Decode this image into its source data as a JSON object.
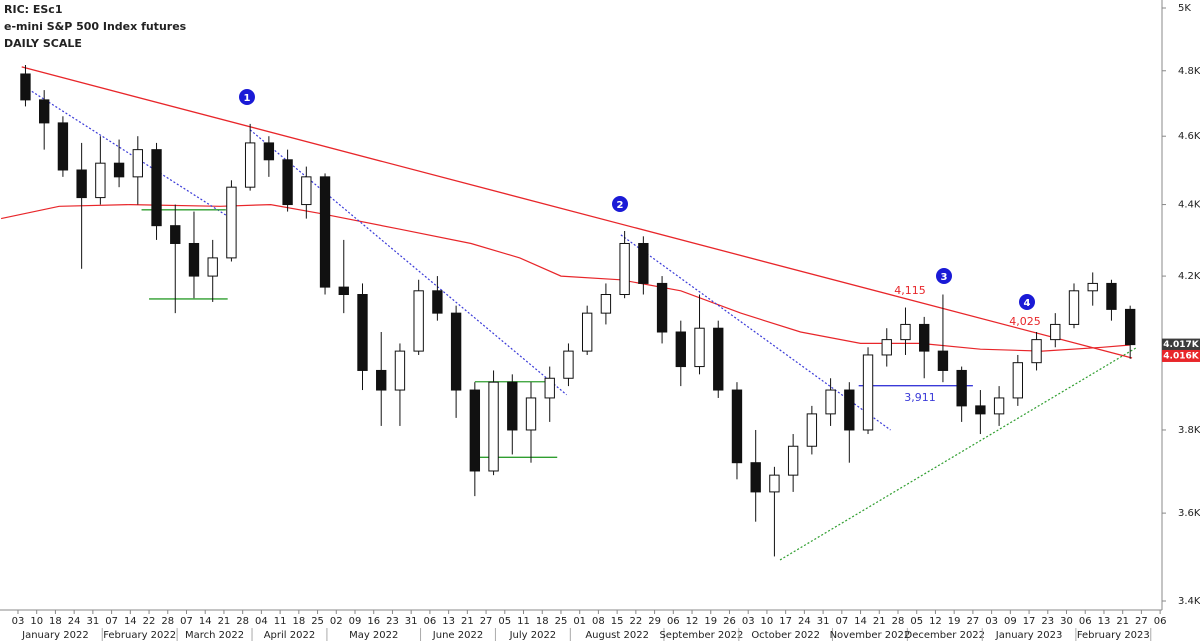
{
  "chart_data": {
    "type": "candlestick",
    "title": "RIC: ESc1",
    "subtitle": "e-mini S&P 500 Index futures",
    "scale_note": "DAILY SCALE",
    "log_scale": true,
    "xlim": [
      -0.96,
      61.1
    ],
    "ylim": [
      3400,
      5000
    ],
    "yticks": [
      {
        "value": 3400,
        "label": "3.4K"
      },
      {
        "value": 3600,
        "label": "3.6K"
      },
      {
        "value": 3800,
        "label": "3.8K"
      },
      {
        "value": 4200,
        "label": "4.2K"
      },
      {
        "value": 4400,
        "label": "4.4K"
      },
      {
        "value": 4600,
        "label": "4.6K"
      },
      {
        "value": 4800,
        "label": "4.8K"
      },
      {
        "value": 5000,
        "label": "5K"
      }
    ],
    "xticks": [
      {
        "value": 0,
        "label": "03"
      },
      {
        "value": 1,
        "label": "10"
      },
      {
        "value": 2,
        "label": "18"
      },
      {
        "value": 3,
        "label": "24"
      },
      {
        "value": 4,
        "label": "31"
      },
      {
        "value": 5,
        "label": "07"
      },
      {
        "value": 6,
        "label": "14"
      },
      {
        "value": 7,
        "label": "22"
      },
      {
        "value": 8,
        "label": "28"
      },
      {
        "value": 9,
        "label": "07"
      },
      {
        "value": 10,
        "label": "14"
      },
      {
        "value": 11,
        "label": "21"
      },
      {
        "value": 12,
        "label": "28"
      },
      {
        "value": 13,
        "label": "04"
      },
      {
        "value": 14,
        "label": "11"
      },
      {
        "value": 15,
        "label": "18"
      },
      {
        "value": 16,
        "label": "25"
      },
      {
        "value": 17,
        "label": "02"
      },
      {
        "value": 18,
        "label": "09"
      },
      {
        "value": 19,
        "label": "16"
      },
      {
        "value": 20,
        "label": "23"
      },
      {
        "value": 21,
        "label": "31"
      },
      {
        "value": 22,
        "label": "06"
      },
      {
        "value": 23,
        "label": "13"
      },
      {
        "value": 24,
        "label": "21"
      },
      {
        "value": 25,
        "label": "27"
      },
      {
        "value": 26,
        "label": "05"
      },
      {
        "value": 27,
        "label": "11"
      },
      {
        "value": 28,
        "label": "18"
      },
      {
        "value": 29,
        "label": "25"
      },
      {
        "value": 30,
        "label": "01"
      },
      {
        "value": 31,
        "label": "08"
      },
      {
        "value": 32,
        "label": "15"
      },
      {
        "value": 33,
        "label": "22"
      },
      {
        "value": 34,
        "label": "29"
      },
      {
        "value": 35,
        "label": "06"
      },
      {
        "value": 36,
        "label": "12"
      },
      {
        "value": 37,
        "label": "19"
      },
      {
        "value": 38,
        "label": "26"
      },
      {
        "value": 39,
        "label": "03"
      },
      {
        "value": 40,
        "label": "10"
      },
      {
        "value": 41,
        "label": "17"
      },
      {
        "value": 42,
        "label": "24"
      },
      {
        "value": 43,
        "label": "31"
      },
      {
        "value": 44,
        "label": "07"
      },
      {
        "value": 45,
        "label": "14"
      },
      {
        "value": 46,
        "label": "21"
      },
      {
        "value": 47,
        "label": "28"
      },
      {
        "value": 48,
        "label": "05"
      },
      {
        "value": 49,
        "label": "12"
      },
      {
        "value": 50,
        "label": "19"
      },
      {
        "value": 51,
        "label": "27"
      },
      {
        "value": 52,
        "label": "03"
      },
      {
        "value": 53,
        "label": "09"
      },
      {
        "value": 54,
        "label": "17"
      },
      {
        "value": 55,
        "label": "23"
      },
      {
        "value": 56,
        "label": "30"
      },
      {
        "value": 57,
        "label": "06"
      },
      {
        "value": 58,
        "label": "13"
      },
      {
        "value": 59,
        "label": "21"
      },
      {
        "value": 60,
        "label": "27"
      },
      {
        "value": 61,
        "label": "06"
      }
    ],
    "months": [
      "January 2022",
      "February 2022",
      "March 2022",
      "April 2022",
      "May 2022",
      "June 2022",
      "July 2022",
      "August 2022",
      "September 2022",
      "October 2022",
      "November 2022",
      "December 2022",
      "January 2023",
      "February 2023"
    ],
    "x": [
      0.4,
      1.4,
      2.4,
      3.4,
      4.4,
      5.4,
      6.4,
      7.4,
      8.4,
      9.4,
      10.4,
      11.4,
      12.4,
      13.4,
      14.4,
      15.4,
      16.4,
      17.4,
      18.4,
      19.4,
      20.4,
      21.4,
      22.4,
      23.4,
      24.4,
      25.4,
      26.4,
      27.4,
      28.4,
      29.4,
      30.4,
      31.4,
      32.4,
      33.4,
      34.4,
      35.4,
      36.4,
      37.4,
      38.4,
      39.4,
      40.4,
      41.4,
      42.4,
      43.4,
      44.4,
      45.4,
      46.4,
      47.4,
      48.4,
      49.4,
      50.4,
      51.4,
      52.4,
      53.4,
      54.4,
      55.4,
      56.4,
      57.4,
      58.4,
      59.4
    ],
    "open": [
      4790,
      4710,
      4640,
      4500,
      4420,
      4520,
      4480,
      4560,
      4340,
      4290,
      4200,
      4250,
      4450,
      4580,
      4530,
      4400,
      4480,
      4170,
      4150,
      3950,
      3900,
      4000,
      4160,
      4100,
      3900,
      3700,
      3920,
      3800,
      3880,
      3930,
      4000,
      4100,
      4150,
      4290,
      4180,
      4050,
      3960,
      4060,
      3900,
      3720,
      3650,
      3690,
      3760,
      3840,
      3900,
      3800,
      3990,
      4030,
      4070,
      4000,
      3950,
      3860,
      3840,
      3880,
      3970,
      4030,
      4070,
      4160,
      4180,
      4110
    ],
    "high": [
      4818,
      4740,
      4660,
      4580,
      4600,
      4590,
      4600,
      4580,
      4400,
      4380,
      4300,
      4470,
      4637,
      4600,
      4560,
      4510,
      4490,
      4300,
      4180,
      4050,
      4020,
      4190,
      4200,
      4120,
      3920,
      3950,
      3940,
      3920,
      3960,
      4020,
      4120,
      4180,
      4325,
      4310,
      4200,
      4080,
      4150,
      4080,
      3920,
      3800,
      3710,
      3790,
      3860,
      3930,
      3920,
      4010,
      4060,
      4115,
      4090,
      4150,
      3960,
      3900,
      3910,
      3990,
      4050,
      4100,
      4180,
      4210,
      4190,
      4120
    ],
    "low": [
      4690,
      4560,
      4480,
      4220,
      4400,
      4450,
      4400,
      4300,
      4100,
      4140,
      4130,
      4240,
      4440,
      4480,
      4380,
      4360,
      4150,
      4100,
      3900,
      3810,
      3810,
      3990,
      4080,
      3830,
      3640,
      3690,
      3740,
      3720,
      3820,
      3910,
      3990,
      4070,
      4140,
      4150,
      4020,
      3910,
      3940,
      3880,
      3680,
      3580,
      3500,
      3650,
      3740,
      3810,
      3720,
      3790,
      3960,
      3990,
      3930,
      3920,
      3820,
      3790,
      3810,
      3860,
      3950,
      4010,
      4060,
      4120,
      4080,
      3980
    ],
    "close": [
      4710,
      4640,
      4500,
      4420,
      4520,
      4480,
      4560,
      4340,
      4290,
      4200,
      4250,
      4450,
      4580,
      4530,
      4400,
      4480,
      4170,
      4150,
      3950,
      3900,
      4000,
      4160,
      4100,
      3900,
      3700,
      3920,
      3800,
      3880,
      3930,
      4000,
      4100,
      4150,
      4290,
      4180,
      4050,
      3960,
      4060,
      3900,
      3720,
      3650,
      3690,
      3760,
      3840,
      3900,
      3800,
      3990,
      4030,
      4070,
      4000,
      3950,
      3860,
      3840,
      3880,
      3970,
      4030,
      4070,
      4160,
      4180,
      4110,
      4017
    ],
    "moving_average": {
      "color": "#e8262a",
      "x": [
        -0.9,
        2.2,
        6,
        10.8,
        13.5,
        16.1,
        20.4,
        24.2,
        26.8,
        29,
        32.2,
        35.4,
        38.6,
        41.8,
        45,
        48.2,
        51.4,
        54.7,
        57.9,
        59.4
      ],
      "values": [
        4360,
        4395,
        4400,
        4395,
        4400,
        4375,
        4330,
        4290,
        4250,
        4200,
        4190,
        4160,
        4100,
        4050,
        4020,
        4020,
        4005,
        4000,
        4010,
        4016
      ]
    },
    "trend_lines": [
      {
        "color": "#e8262a",
        "style": "solid",
        "x": [
          0.2,
          59.5
        ],
        "y": [
          4812,
          3982
        ]
      },
      {
        "color": "#3a3ad8",
        "style": "dotted",
        "x": [
          0.2,
          11.1
        ],
        "y": [
          4756,
          4370
        ]
      },
      {
        "color": "#3a3ad8",
        "style": "dotted",
        "x": [
          12.4,
          29.3
        ],
        "y": [
          4619,
          3888
        ]
      },
      {
        "color": "#3a3ad8",
        "style": "dotted",
        "x": [
          32.2,
          46.6
        ],
        "y": [
          4314,
          3800
        ]
      },
      {
        "color": "#2f9e2f",
        "style": "dotted",
        "x": [
          40.7,
          59.7
        ],
        "y": [
          3492,
          4008
        ]
      },
      {
        "color": "#2f9e2f",
        "style": "solid",
        "x": [
          7.0,
          11.2
        ],
        "y": [
          4138,
          4138
        ]
      },
      {
        "color": "#2f9e2f",
        "style": "solid",
        "x": [
          6.6,
          11.1
        ],
        "y": [
          4385,
          4385
        ]
      },
      {
        "color": "#2f9e2f",
        "style": "solid",
        "x": [
          24.4,
          28.3
        ],
        "y": [
          3921,
          3921
        ]
      },
      {
        "color": "#2f9e2f",
        "style": "solid",
        "x": [
          24.5,
          28.8
        ],
        "y": [
          3733,
          3733
        ]
      },
      {
        "color": "#3a3ad8",
        "style": "solid",
        "x": [
          44.9,
          51.0
        ],
        "y": [
          3911,
          3911
        ]
      }
    ],
    "annotations": [
      {
        "text": "4,115",
        "color": "#e8262a"
      },
      {
        "text": "4,025",
        "color": "#e8262a"
      },
      {
        "text": "3,911",
        "color": "#3a3ad8"
      }
    ],
    "markers": [
      "1",
      "2",
      "3",
      "4"
    ],
    "price_tags": [
      {
        "label": "4.017K",
        "value": 4017,
        "color": "#3c3c3c"
      },
      {
        "label": "4.016K",
        "value": 4016,
        "color": "#e8262a"
      }
    ]
  }
}
